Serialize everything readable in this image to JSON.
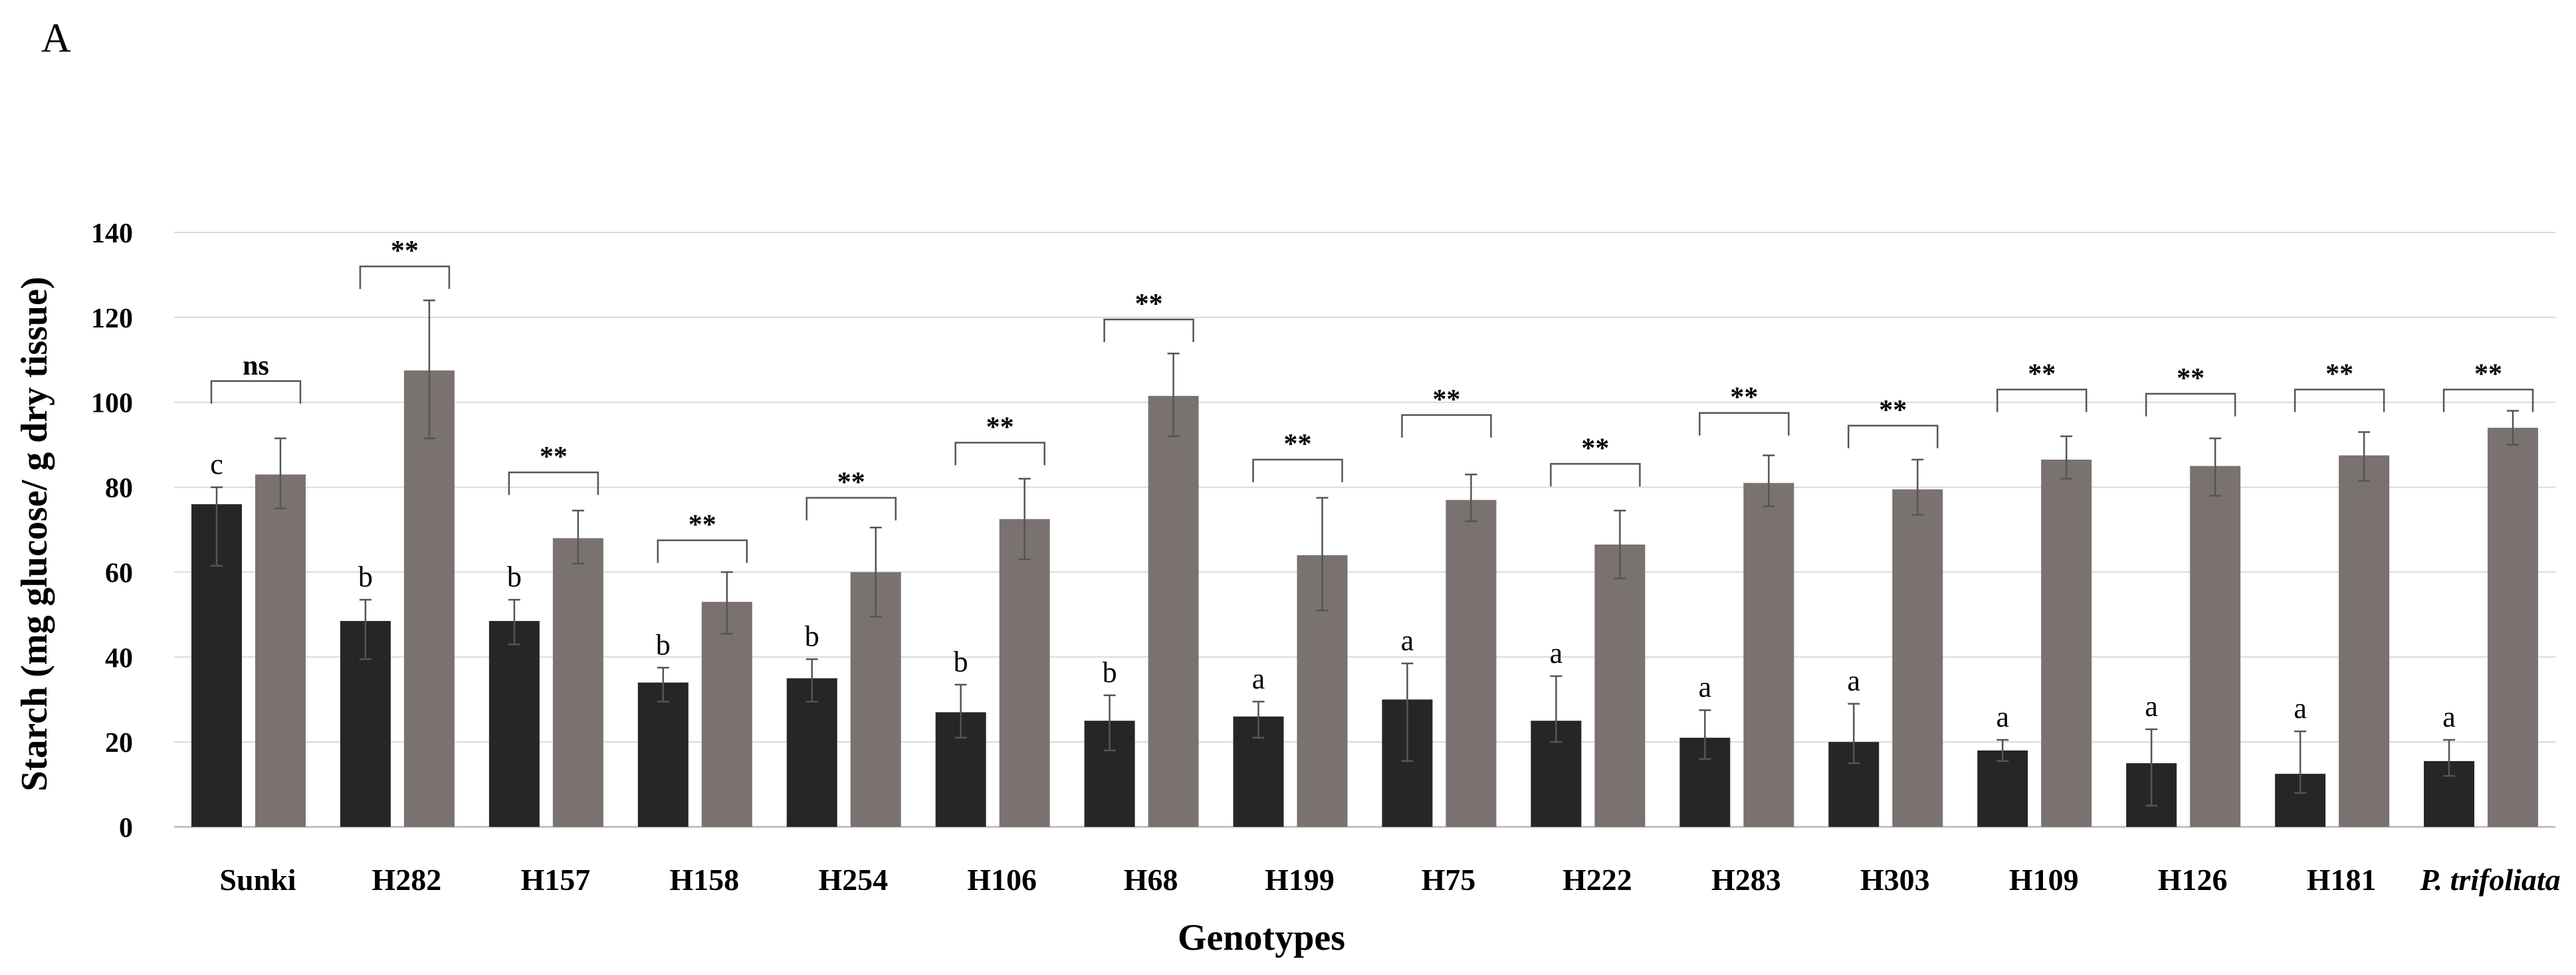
{
  "panel_label": "A",
  "chart_data": {
    "type": "bar",
    "xlabel": "Genotypes",
    "ylabel": "Starch (mg glucose/ g dry tissue)",
    "ylim": [
      0,
      140
    ],
    "yticks": [
      0,
      20,
      40,
      60,
      80,
      100,
      120,
      140
    ],
    "categories": [
      "Sunki",
      "H282",
      "H157",
      "H158",
      "H254",
      "H106",
      "H68",
      "H199",
      "H75",
      "H222",
      "H283",
      "H303",
      "H109",
      "H126",
      "H181",
      "P. trifoliata"
    ],
    "series": [
      {
        "name": "dark",
        "color": "#262626",
        "values": [
          76,
          48.5,
          48.5,
          34,
          35,
          27,
          25,
          26,
          30,
          25,
          21,
          20,
          18,
          15,
          12.5,
          15.5
        ],
        "error_low": [
          61.5,
          39.5,
          43,
          29.5,
          29.5,
          21,
          18,
          21,
          15.5,
          20,
          16,
          15,
          15.5,
          5,
          8,
          12
        ],
        "error_high": [
          80,
          53.5,
          53.5,
          37.5,
          39.5,
          33.5,
          31,
          29.5,
          38.5,
          35.5,
          27.5,
          29,
          20.5,
          23,
          22.5,
          20.5
        ],
        "letters": [
          "c",
          "b",
          "b",
          "b",
          "b",
          "b",
          "b",
          "a",
          "a",
          "a",
          "a",
          "a",
          "a",
          "a",
          "a",
          "a"
        ]
      },
      {
        "name": "grey",
        "color": "#7a7270",
        "values": [
          83,
          107.5,
          68,
          53,
          60,
          72.5,
          101.5,
          64,
          77,
          66.5,
          81,
          79.5,
          86.5,
          85,
          87.5,
          94
        ],
        "error_low": [
          75,
          91.5,
          62,
          45.5,
          49.5,
          63,
          92,
          51,
          72,
          58.5,
          75.5,
          73.5,
          82,
          78,
          81.5,
          90
        ],
        "error_high": [
          91.5,
          124,
          74.5,
          60,
          70.5,
          82,
          111.5,
          77.5,
          83,
          74.5,
          87.5,
          86.5,
          92,
          91.5,
          93,
          98
        ]
      }
    ],
    "significance": [
      "ns",
      "**",
      "**",
      "**",
      "**",
      "**",
      "**",
      "**",
      "**",
      "**",
      "**",
      "**",
      "**",
      "**",
      "**",
      "**"
    ],
    "bracket_levels": [
      105,
      132,
      83.5,
      67.5,
      77.5,
      90.5,
      119.5,
      86.5,
      97,
      85.5,
      97.5,
      94.5,
      103,
      102,
      103,
      103
    ],
    "italic_categories": [
      "P. trifoliata"
    ]
  }
}
